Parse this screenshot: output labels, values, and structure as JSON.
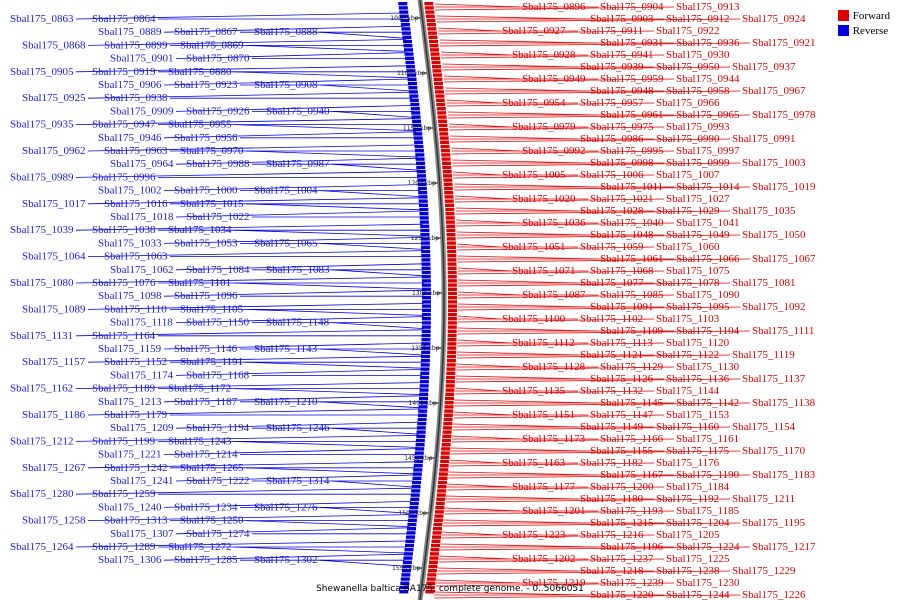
{
  "title": "Shewanella baltica BA175, complete genome. - 0..5066051",
  "legend": {
    "forward": {
      "label": "Forward",
      "color": "#e00000"
    },
    "reverse": {
      "label": "Reverse",
      "color": "#0000e0"
    }
  },
  "ruler_labels": [
    "1050 kbp",
    "1100 kbp",
    "1150 kbp",
    "1200 kbp",
    "1250 kbp",
    "1300 kbp",
    "1350 kbp",
    "1400 kbp",
    "1450 kbp",
    "1500 kbp",
    "1550 kbp"
  ],
  "reverse_left_labels": [
    "Sbal175_0863",
    "Sbal175_0864",
    "Sbal175_0889",
    "Sbal175_0867",
    "Sbal175_0888",
    "Sbal175_0868",
    "Sbal175_0899",
    "Sbal175_0869",
    "Sbal175_0901",
    "Sbal175_0870",
    "Sbal175_0905",
    "Sbal175_0919",
    "Sbal175_0880",
    "Sbal175_0906",
    "Sbal175_0923",
    "Sbal175_0908",
    "Sbal175_0925",
    "Sbal175_0938",
    "Sbal175_0909",
    "Sbal175_0926",
    "Sbal175_0940",
    "Sbal175_0935",
    "Sbal175_0947",
    "Sbal175_0955",
    "Sbal175_0946",
    "Sbal175_0956",
    "Sbal175_0962",
    "Sbal175_0963",
    "Sbal175_0970",
    "Sbal175_0964",
    "Sbal175_0988",
    "Sbal175_0987",
    "Sbal175_0989",
    "Sbal175_0996",
    "Sbal175_1002",
    "Sbal175_1000",
    "Sbal175_1004",
    "Sbal175_1017",
    "Sbal175_1016",
    "Sbal175_1015",
    "Sbal175_1018",
    "Sbal175_1022",
    "Sbal175_1039",
    "Sbal175_1038",
    "Sbal175_1034",
    "Sbal175_1033",
    "Sbal175_1053",
    "Sbal175_1065",
    "Sbal175_1064",
    "Sbal175_1063",
    "Sbal175_1062",
    "Sbal175_1084",
    "Sbal175_1083",
    "Sbal175_1080",
    "Sbal175_1076",
    "Sbal175_1101",
    "Sbal175_1098",
    "Sbal175_1096",
    "Sbal175_1089",
    "Sbal175_1110",
    "Sbal175_1105",
    "Sbal175_1118",
    "Sbal175_1150",
    "Sbal175_1148",
    "Sbal175_1131",
    "Sbal175_1164",
    "Sbal175_1159",
    "Sbal175_1146",
    "Sbal175_1143",
    "Sbal175_1157",
    "Sbal175_1152",
    "Sbal175_1191",
    "Sbal175_1174",
    "Sbal175_1168",
    "Sbal175_1162",
    "Sbal175_1189",
    "Sbal175_1172",
    "Sbal175_1213",
    "Sbal175_1187",
    "Sbal175_1210",
    "Sbal175_1186",
    "Sbal175_1179",
    "Sbal175_1209",
    "Sbal175_1194",
    "Sbal175_1246",
    "Sbal175_1212",
    "Sbal175_1199",
    "Sbal175_1243",
    "Sbal175_1221",
    "Sbal175_1214",
    "Sbal175_1267",
    "Sbal175_1242",
    "Sbal175_1265",
    "Sbal175_1241",
    "Sbal175_1222",
    "Sbal175_1314",
    "Sbal175_1280",
    "Sbal175_1259",
    "Sbal175_1240",
    "Sbal175_1234",
    "Sbal175_1276",
    "Sbal175_1258",
    "Sbal175_1313",
    "Sbal175_1250",
    "Sbal175_1307",
    "Sbal175_1274",
    "Sbal175_1264",
    "Sbal175_1289",
    "Sbal175_1272",
    "Sbal175_1306",
    "Sbal175_1285",
    "Sbal175_1302"
  ],
  "forward_right_labels": [
    "Sbal175_0896",
    "Sbal175_0904",
    "Sbal175_0913",
    "Sbal175_0903",
    "Sbal175_0912",
    "Sbal175_0924",
    "Sbal175_0927",
    "Sbal175_0911",
    "Sbal175_0922",
    "Sbal175_0931",
    "Sbal175_0936",
    "Sbal175_0921",
    "Sbal175_0928",
    "Sbal175_0941",
    "Sbal175_0930",
    "Sbal175_0939",
    "Sbal175_0950",
    "Sbal175_0937",
    "Sbal175_0949",
    "Sbal175_0959",
    "Sbal175_0944",
    "Sbal175_0948",
    "Sbal175_0958",
    "Sbal175_0967",
    "Sbal175_0954",
    "Sbal175_0957",
    "Sbal175_0966",
    "Sbal175_0961",
    "Sbal175_0965",
    "Sbal175_0978",
    "Sbal175_0979",
    "Sbal175_0975",
    "Sbal175_0993",
    "Sbal175_0986",
    "Sbal175_0990",
    "Sbal175_0991",
    "Sbal175_0992",
    "Sbal175_0995",
    "Sbal175_0997",
    "Sbal175_0998",
    "Sbal175_0999",
    "Sbal175_1003",
    "Sbal175_1005",
    "Sbal175_1006",
    "Sbal175_1007",
    "Sbal175_1011",
    "Sbal175_1014",
    "Sbal175_1019",
    "Sbal175_1020",
    "Sbal175_1021",
    "Sbal175_1027",
    "Sbal175_1028",
    "Sbal175_1029",
    "Sbal175_1035",
    "Sbal175_1036",
    "Sbal175_1040",
    "Sbal175_1041",
    "Sbal175_1048",
    "Sbal175_1049",
    "Sbal175_1050",
    "Sbal175_1051",
    "Sbal175_1059",
    "Sbal175_1060",
    "Sbal175_1061",
    "Sbal175_1066",
    "Sbal175_1067",
    "Sbal175_1071",
    "Sbal175_1068",
    "Sbal175_1075",
    "Sbal175_1077",
    "Sbal175_1078",
    "Sbal175_1081",
    "Sbal175_1087",
    "Sbal175_1085",
    "Sbal175_1090",
    "Sbal175_1091",
    "Sbal175_1095",
    "Sbal175_1092",
    "Sbal175_1100",
    "Sbal175_1102",
    "Sbal175_1103",
    "Sbal175_1109",
    "Sbal175_1104",
    "Sbal175_1111",
    "Sbal175_1112",
    "Sbal175_1113",
    "Sbal175_1120",
    "Sbal175_1121",
    "Sbal175_1122",
    "Sbal175_1119",
    "Sbal175_1128",
    "Sbal175_1129",
    "Sbal175_1130",
    "Sbal175_1126",
    "Sbal175_1136",
    "Sbal175_1137",
    "Sbal175_1135",
    "Sbal175_1132",
    "Sbal175_1144",
    "Sbal175_1145",
    "Sbal175_1142",
    "Sbal175_1138",
    "Sbal175_1151",
    "Sbal175_1147",
    "Sbal175_1153",
    "Sbal175_1149",
    "Sbal175_1160",
    "Sbal175_1154",
    "Sbal175_1173",
    "Sbal175_1166",
    "Sbal175_1161",
    "Sbal175_1155",
    "Sbal175_1175",
    "Sbal175_1170",
    "Sbal175_1163",
    "Sbal175_1182",
    "Sbal175_1176",
    "Sbal175_1167",
    "Sbal175_1190",
    "Sbal175_1183",
    "Sbal175_1177",
    "Sbal175_1200",
    "Sbal175_1184",
    "Sbal175_1180",
    "Sbal175_1192",
    "Sbal175_1211",
    "Sbal175_1201",
    "Sbal175_1193",
    "Sbal175_1185",
    "Sbal175_1215",
    "Sbal175_1204",
    "Sbal175_1195",
    "Sbal175_1223",
    "Sbal175_1216",
    "Sbal175_1205",
    "Sbal175_1196",
    "Sbal175_1224",
    "Sbal175_1217",
    "Sbal175_1202",
    "Sbal175_1237",
    "Sbal175_1225",
    "Sbal175_1218",
    "Sbal175_1238",
    "Sbal175_1229",
    "Sbal175_1219",
    "Sbal175_1239",
    "Sbal175_1230",
    "Sbal175_1220",
    "Sbal175_1244",
    "Sbal175_1226"
  ]
}
